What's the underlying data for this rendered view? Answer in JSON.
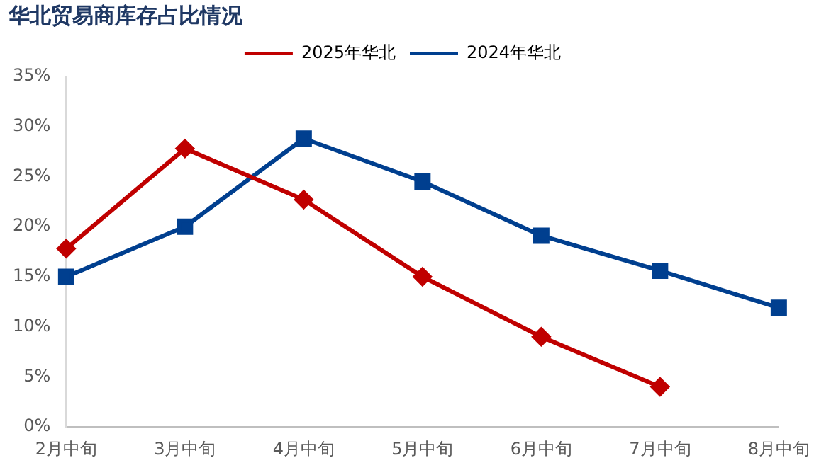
{
  "chart_data": {
    "type": "line",
    "title": "华北贸易商库存占比情况",
    "categories": [
      "2月中旬",
      "3月中旬",
      "4月中旬",
      "5月中旬",
      "6月中旬",
      "7月中旬",
      "8月中旬"
    ],
    "series": [
      {
        "name": "2025年华北",
        "color": "#c00000",
        "marker": "diamond",
        "values": [
          17.8,
          27.8,
          22.7,
          15,
          9,
          4,
          null
        ]
      },
      {
        "name": "2024年华北",
        "color": "#003f8f",
        "marker": "square",
        "values": [
          15,
          20,
          28.8,
          24.5,
          19.1,
          15.6,
          11.9
        ]
      }
    ],
    "ylim": [
      0,
      35
    ],
    "yticks": [
      {
        "value": 0,
        "label": "0%"
      },
      {
        "value": 5,
        "label": "5%"
      },
      {
        "value": 10,
        "label": "10%"
      },
      {
        "value": 15,
        "label": "15%"
      },
      {
        "value": 20,
        "label": "20%"
      },
      {
        "value": 25,
        "label": "25%"
      },
      {
        "value": 30,
        "label": "30%"
      },
      {
        "value": 35,
        "label": "35%"
      }
    ],
    "grid": false,
    "legend": "top",
    "line_style": "solid"
  }
}
